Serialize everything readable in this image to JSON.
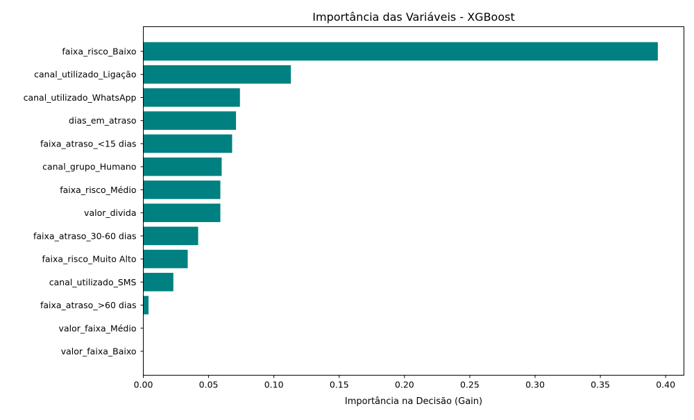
{
  "chart_data": {
    "type": "bar",
    "orientation": "horizontal",
    "title": "Importância das Variáveis - XGBoost",
    "xlabel": "Importância na Decisão (Gain)",
    "ylabel": "",
    "xlim": [
      0,
      0.414
    ],
    "xticks": [
      0.0,
      0.05,
      0.1,
      0.15,
      0.2,
      0.25,
      0.3,
      0.35,
      0.4
    ],
    "xtick_labels": [
      "0.00",
      "0.05",
      "0.10",
      "0.15",
      "0.20",
      "0.25",
      "0.30",
      "0.35",
      "0.40"
    ],
    "grid": false,
    "bar_color": "#008080",
    "categories": [
      "faixa_risco_Baixo",
      "canal_utilizado_Ligação",
      "canal_utilizado_WhatsApp",
      "dias_em_atraso",
      "faixa_atraso_<15 dias",
      "canal_grupo_Humano",
      "faixa_risco_Médio",
      "valor_divida",
      "faixa_atraso_30-60 dias",
      "faixa_risco_Muito Alto",
      "canal_utilizado_SMS",
      "faixa_atraso_>60 dias",
      "valor_faixa_Médio",
      "valor_faixa_Baixo"
    ],
    "values": [
      0.394,
      0.113,
      0.074,
      0.071,
      0.068,
      0.06,
      0.059,
      0.059,
      0.042,
      0.034,
      0.023,
      0.004,
      0.0,
      0.0
    ]
  }
}
